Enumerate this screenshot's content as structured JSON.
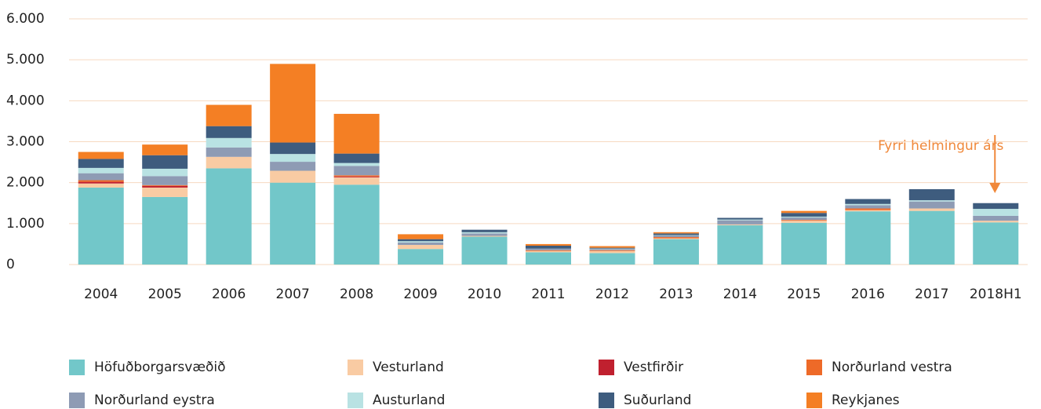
{
  "chart_data": {
    "type": "bar",
    "stacked": true,
    "grid": true,
    "annotation": "Fyrri helmingur árs",
    "annotation_color": "#f0883a",
    "categories": [
      "2004",
      "2005",
      "2006",
      "2007",
      "2008",
      "2009",
      "2010",
      "2011",
      "2012",
      "2013",
      "2014",
      "2015",
      "2016",
      "2017",
      "2018H1"
    ],
    "ylim": [
      0,
      6000
    ],
    "yticks": [
      0,
      {
        "value": 1000,
        "label": "1.000"
      },
      {
        "value": 2000,
        "label": "2.000"
      },
      {
        "value": 3000,
        "label": "3.000"
      },
      {
        "value": 4000,
        "label": "4.000"
      },
      {
        "value": 5000,
        "label": "5.000"
      },
      {
        "value": 6000,
        "label": "6.000"
      }
    ],
    "legend_position": "bottom",
    "series": [
      {
        "name": "Höfuðborgarsvæðið",
        "color": "#72c7c9",
        "values": [
          1880,
          1650,
          2350,
          2000,
          1950,
          380,
          680,
          300,
          280,
          620,
          960,
          1020,
          1300,
          1310,
          1030
        ]
      },
      {
        "name": "Vesturland",
        "color": "#f9cba3",
        "values": [
          100,
          230,
          280,
          290,
          180,
          100,
          20,
          30,
          50,
          20,
          20,
          50,
          30,
          60,
          40
        ]
      },
      {
        "name": "Vestfirðir",
        "color": "#c0202f",
        "values": [
          40,
          40,
          0,
          0,
          20,
          0,
          0,
          0,
          0,
          0,
          0,
          0,
          0,
          0,
          0
        ]
      },
      {
        "name": "Norðurland vestra",
        "color": "#ee6a28",
        "values": [
          40,
          20,
          0,
          0,
          30,
          0,
          0,
          20,
          20,
          30,
          0,
          20,
          40,
          0,
          0
        ]
      },
      {
        "name": "Norðurland eystra",
        "color": "#8e9bb4",
        "values": [
          170,
          220,
          230,
          220,
          230,
          60,
          60,
          40,
          30,
          40,
          100,
          60,
          80,
          170,
          120
        ]
      },
      {
        "name": "Austurland",
        "color": "#b9e2e3",
        "values": [
          130,
          180,
          230,
          190,
          70,
          30,
          30,
          0,
          10,
          10,
          20,
          20,
          30,
          30,
          170
        ]
      },
      {
        "name": "Suðurland",
        "color": "#3e5c7e",
        "values": [
          220,
          330,
          290,
          280,
          230,
          50,
          60,
          70,
          20,
          40,
          40,
          90,
          120,
          270,
          140
        ]
      },
      {
        "name": "Reykjanes",
        "color": "#f47f24",
        "values": [
          170,
          260,
          520,
          1920,
          970,
          120,
          0,
          40,
          40,
          30,
          0,
          50,
          0,
          0,
          0
        ]
      }
    ]
  }
}
